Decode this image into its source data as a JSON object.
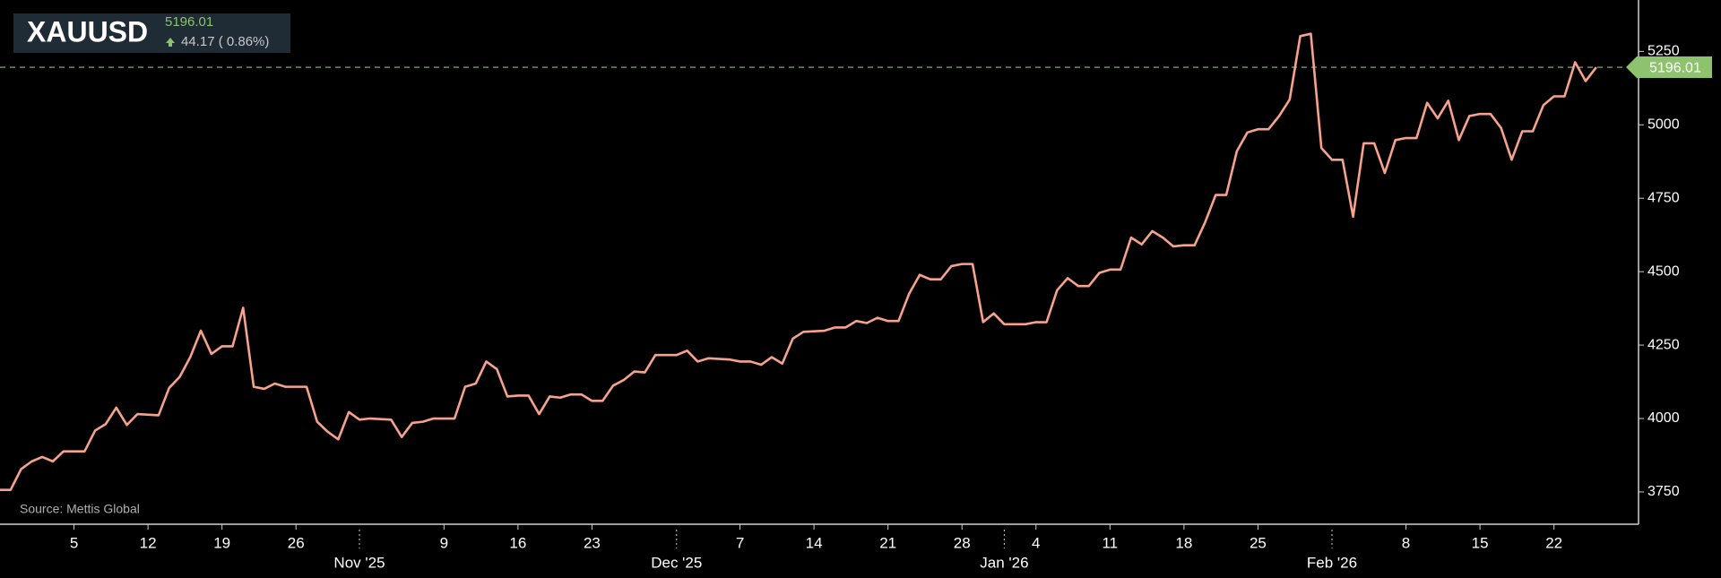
{
  "chart_data": {
    "type": "line",
    "title": "XAUUSD",
    "last_value": 5196.01,
    "change": "44.17 ( 0.86%)",
    "source": "Source: Mettis Global",
    "color": "#f7a28c",
    "last_color": "#8dc26f",
    "x": [
      "2025-09-28",
      "2025-09-29",
      "2025-09-30",
      "2025-10-01",
      "2025-10-02",
      "2025-10-03",
      "2025-10-04",
      "2025-10-06",
      "2025-10-07",
      "2025-10-08",
      "2025-10-09",
      "2025-10-10",
      "2025-10-11",
      "2025-10-13",
      "2025-10-14",
      "2025-10-15",
      "2025-10-16",
      "2025-10-17",
      "2025-10-18",
      "2025-10-19",
      "2025-10-20",
      "2025-10-21",
      "2025-10-22",
      "2025-10-23",
      "2025-10-24",
      "2025-10-25",
      "2025-10-27",
      "2025-10-28",
      "2025-10-29",
      "2025-10-30",
      "2025-10-31",
      "2025-11-01",
      "2025-11-02",
      "2025-11-04",
      "2025-11-05",
      "2025-11-06",
      "2025-11-07",
      "2025-11-08",
      "2025-11-10",
      "2025-11-11",
      "2025-11-12",
      "2025-11-13",
      "2025-11-14",
      "2025-11-15",
      "2025-11-16",
      "2025-11-17",
      "2025-11-18",
      "2025-11-19",
      "2025-11-20",
      "2025-11-21",
      "2025-11-22",
      "2025-11-23",
      "2025-11-24",
      "2025-11-25",
      "2025-11-26",
      "2025-11-27",
      "2025-11-28",
      "2025-11-29",
      "2025-12-01",
      "2025-12-02",
      "2025-12-03",
      "2025-12-04",
      "2025-12-06",
      "2025-12-07",
      "2025-12-08",
      "2025-12-09",
      "2025-12-10",
      "2025-12-11",
      "2025-12-12",
      "2025-12-13",
      "2025-12-15",
      "2025-12-16",
      "2025-12-17",
      "2025-12-18",
      "2025-12-19",
      "2025-12-20",
      "2025-12-21",
      "2025-12-22",
      "2025-12-23",
      "2025-12-24",
      "2025-12-25",
      "2025-12-26",
      "2025-12-27",
      "2025-12-28",
      "2025-12-29",
      "2025-12-30",
      "2025-12-31",
      "2026-01-01",
      "2026-01-03",
      "2026-01-04",
      "2026-01-05",
      "2026-01-06",
      "2026-01-07",
      "2026-01-08",
      "2026-01-09",
      "2026-01-10",
      "2026-01-11",
      "2026-01-12",
      "2026-01-13",
      "2026-01-14",
      "2026-01-15",
      "2026-01-16",
      "2026-01-17",
      "2026-01-18",
      "2026-01-19",
      "2026-01-20",
      "2026-01-21",
      "2026-01-22",
      "2026-01-23",
      "2026-01-24",
      "2026-01-25",
      "2026-01-26",
      "2026-01-27",
      "2026-01-28",
      "2026-01-29",
      "2026-01-30",
      "2026-01-31",
      "2026-02-01",
      "2026-02-02",
      "2026-02-03",
      "2026-02-04",
      "2026-02-05",
      "2026-02-06",
      "2026-02-07",
      "2026-02-08",
      "2026-02-09",
      "2026-02-10",
      "2026-02-11",
      "2026-02-12",
      "2026-02-13",
      "2026-02-14",
      "2026-02-15",
      "2026-02-16",
      "2026-02-17",
      "2026-02-18",
      "2026-02-19",
      "2026-02-20",
      "2026-02-21",
      "2026-02-22",
      "2026-02-23",
      "2026-02-24",
      "2026-02-25",
      "2026-02-26"
    ],
    "values": [
      3757,
      3757,
      3828,
      3854,
      3869,
      3854,
      3888,
      3888,
      3959,
      3981,
      4037,
      3978,
      4015,
      4011,
      4104,
      4142,
      4209,
      4299,
      4220,
      4246,
      4246,
      4377,
      4108,
      4101,
      4119,
      4108,
      4108,
      3989,
      3955,
      3929,
      4022,
      3996,
      4000,
      3996,
      3937,
      3985,
      3989,
      4000,
      4000,
      4108,
      4119,
      4194,
      4168,
      4075,
      4078,
      4078,
      4015,
      4075,
      4071,
      4082,
      4082,
      4060,
      4060,
      4112,
      4131,
      4160,
      4157,
      4216,
      4216,
      4231,
      4194,
      4205,
      4201,
      4194,
      4194,
      4183,
      4209,
      4187,
      4272,
      4295,
      4299,
      4310,
      4310,
      4332,
      4325,
      4343,
      4332,
      4332,
      4425,
      4489,
      4474,
      4474,
      4519,
      4526,
      4526,
      4328,
      4358,
      4321,
      4321,
      4328,
      4328,
      4437,
      4478,
      4451,
      4451,
      4496,
      4507,
      4507,
      4616,
      4593,
      4638,
      4616,
      4586,
      4590,
      4590,
      4668,
      4761,
      4761,
      4910,
      4974,
      4985,
      4985,
      5030,
      5086,
      5302,
      5310,
      4921,
      4881,
      4881,
      4687,
      4937,
      4937,
      4836,
      4948,
      4955,
      4955,
      5075,
      5022,
      5082,
      4948,
      5030,
      5037,
      5037,
      4989,
      4881,
      4978,
      4978,
      5067,
      5097,
      5097,
      5213,
      5149,
      5196.01
    ],
    "xlim": [
      "2025-09-28",
      "2026-03-02"
    ],
    "xticks": [
      {
        "value": "2025-10-05",
        "label": "5"
      },
      {
        "value": "2025-10-12",
        "label": "12"
      },
      {
        "value": "2025-10-19",
        "label": "19"
      },
      {
        "value": "2025-10-26",
        "label": "26"
      },
      {
        "value": "2025-11-09",
        "label": "9"
      },
      {
        "value": "2025-11-16",
        "label": "16"
      },
      {
        "value": "2025-11-23",
        "label": "23"
      },
      {
        "value": "2025-12-07",
        "label": "7"
      },
      {
        "value": "2025-12-14",
        "label": "14"
      },
      {
        "value": "2025-12-21",
        "label": "21"
      },
      {
        "value": "2025-12-28",
        "label": "28"
      },
      {
        "value": "2026-01-04",
        "label": "4"
      },
      {
        "value": "2026-01-11",
        "label": "11"
      },
      {
        "value": "2026-01-18",
        "label": "18"
      },
      {
        "value": "2026-01-25",
        "label": "25"
      },
      {
        "value": "2026-02-08",
        "label": "8"
      },
      {
        "value": "2026-02-15",
        "label": "15"
      },
      {
        "value": "2026-02-22",
        "label": "22"
      }
    ],
    "month_ticks": [
      {
        "value": "2025-11-01",
        "label": "Nov '25"
      },
      {
        "value": "2025-12-01",
        "label": "Dec '25"
      },
      {
        "value": "2026-01-01",
        "label": "Jan '26"
      },
      {
        "value": "2026-02-01",
        "label": "Feb '26"
      }
    ],
    "ylim": [
      3640,
      5425
    ],
    "yticks": [
      3750,
      4000,
      4250,
      4500,
      4750,
      5000,
      5250
    ]
  }
}
